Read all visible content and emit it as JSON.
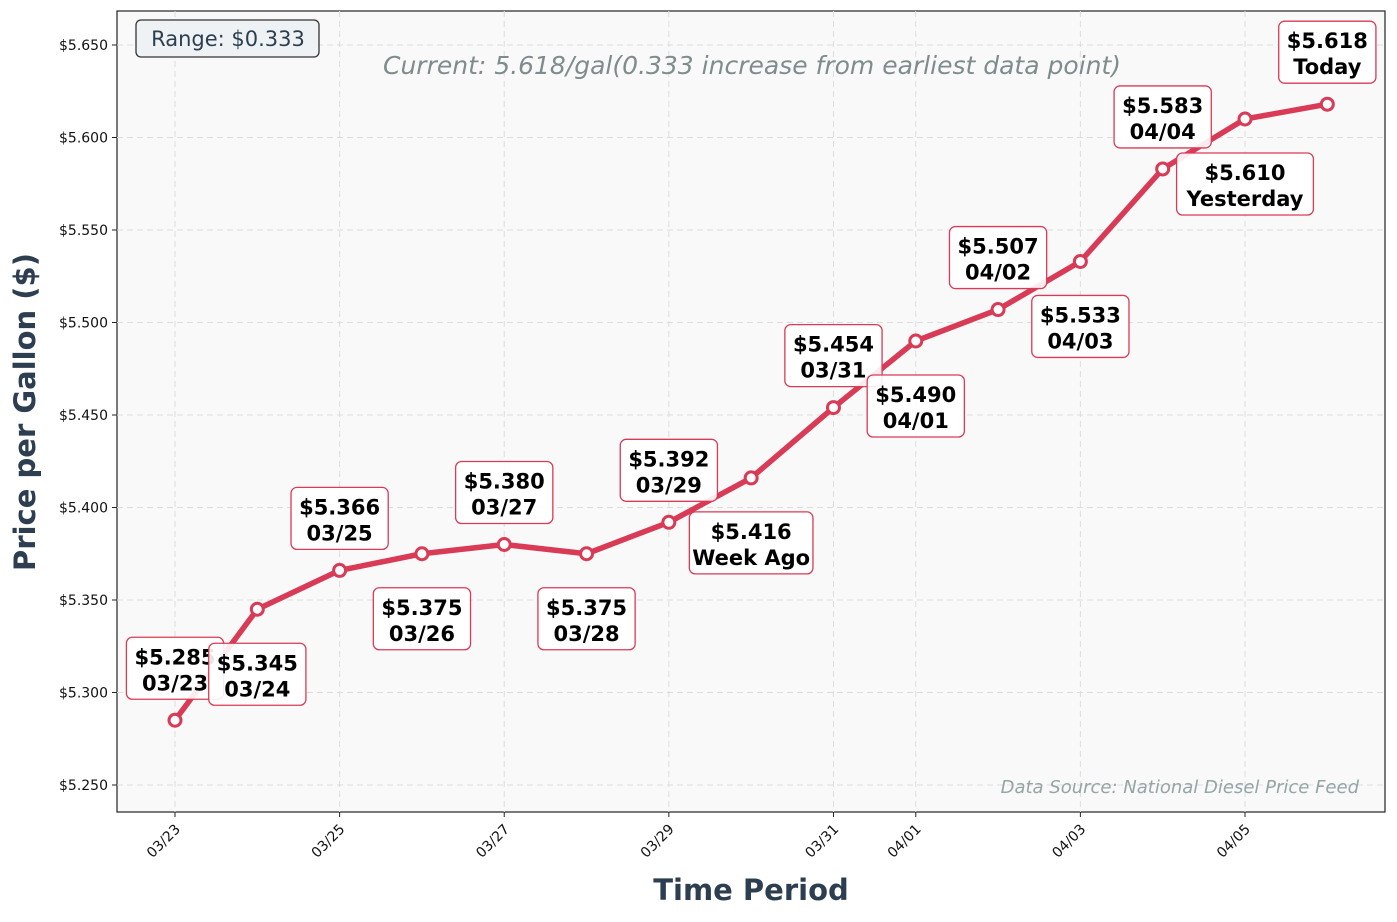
{
  "chart_data": {
    "type": "line",
    "title": "",
    "xlabel": "Time Period",
    "ylabel": "Price per Gallon ($)",
    "x": [
      "03/23",
      "03/24",
      "03/25",
      "03/26",
      "03/27",
      "03/28",
      "03/29",
      "03/30",
      "03/31",
      "04/01",
      "04/02",
      "04/03",
      "04/04",
      "04/05",
      "04/06"
    ],
    "values": [
      5.285,
      5.345,
      5.366,
      5.375,
      5.38,
      5.375,
      5.392,
      5.416,
      5.454,
      5.49,
      5.507,
      5.533,
      5.583,
      5.61,
      5.618
    ],
    "point_labels": [
      [
        "$5.285",
        "03/23"
      ],
      [
        "$5.345",
        "03/24"
      ],
      [
        "$5.366",
        "03/25"
      ],
      [
        "$5.375",
        "03/26"
      ],
      [
        "$5.380",
        "03/27"
      ],
      [
        "$5.375",
        "03/28"
      ],
      [
        "$5.392",
        "03/29"
      ],
      [
        "$5.416",
        "Week Ago"
      ],
      [
        "$5.454",
        "03/31"
      ],
      [
        "$5.490",
        "04/01"
      ],
      [
        "$5.507",
        "04/02"
      ],
      [
        "$5.533",
        "04/03"
      ],
      [
        "$5.583",
        "04/04"
      ],
      [
        "$5.610",
        "Yesterday"
      ],
      [
        "$5.618",
        "Today"
      ]
    ],
    "xticks": [
      "03/23",
      "03/25",
      "03/27",
      "03/29",
      "03/31",
      "04/01",
      "04/03",
      "04/05"
    ],
    "yticks": [
      "$5.250",
      "$5.300",
      "$5.350",
      "$5.400",
      "$5.450",
      "$5.500",
      "$5.550",
      "$5.600",
      "$5.650"
    ],
    "ylim": [
      5.235,
      5.668
    ],
    "grid": true,
    "line_color": "#d93a55",
    "annotations": {
      "range": "Range: $0.333",
      "current": "Current: 5.618/gal(0.333 increase from earliest data point)",
      "source": "Data Source: National Diesel Price Feed"
    }
  }
}
